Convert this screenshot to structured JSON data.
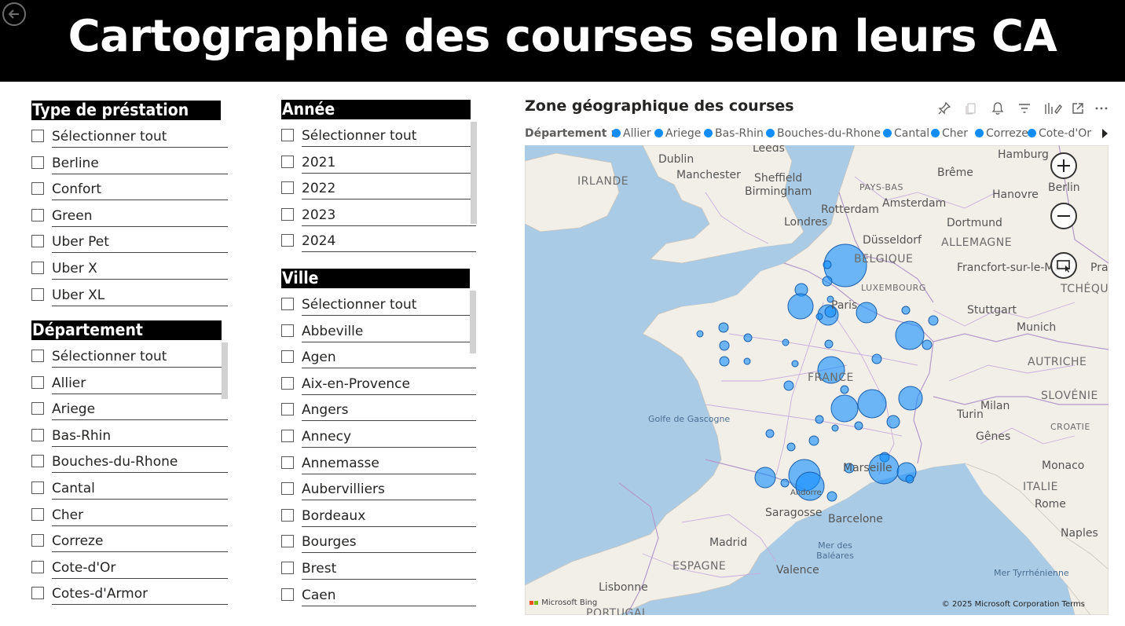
{
  "header": {
    "title": "Cartographie des courses selon leurs CA"
  },
  "slicers": {
    "prestation": {
      "title": "Type de préstation",
      "items": [
        "Sélectionner tout",
        "Berline",
        "Confort",
        "Green",
        "Uber Pet",
        "Uber X",
        "Uber XL"
      ]
    },
    "departement": {
      "title": "Département",
      "items": [
        "Sélectionner tout",
        "Allier",
        "Ariege",
        "Bas-Rhin",
        "Bouches-du-Rhone",
        "Cantal",
        "Cher",
        "Correze",
        "Cote-d'Or",
        "Cotes-d'Armor"
      ]
    },
    "annee": {
      "title": "Année",
      "items": [
        "Sélectionner tout",
        "2021",
        "2022",
        "2023",
        "2024"
      ]
    },
    "ville": {
      "title": "Ville",
      "items": [
        "Sélectionner tout",
        "Abbeville",
        "Agen",
        "Aix-en-Provence",
        "Angers",
        "Annecy",
        "Annemasse",
        "Aubervilliers",
        "Bordeaux",
        "Bourges",
        "Brest",
        "Caen"
      ]
    }
  },
  "map_visual": {
    "title": "Zone géographique des courses",
    "legend_title": "Département :",
    "legend_items": [
      "Allier",
      "Ariege",
      "Bas-Rhin",
      "Bouches-du-Rhone",
      "Cantal",
      "Cher",
      "Correze",
      "Cote-d'Or"
    ],
    "bubble_color": "#118dff",
    "toolbar_icons": [
      "pin-icon",
      "copy-icon",
      "bell-icon",
      "filter-icon",
      "format-icon",
      "focus-mode-icon",
      "more-options-icon"
    ],
    "bing": "Microsoft Bing",
    "copyright": "© 2025 Microsoft Corporation  Terms",
    "map_labels": {
      "cities": [
        "Dublin",
        "Manchester",
        "Leeds",
        "Sheffield",
        "Birmingham",
        "Londres",
        "Rotterdam",
        "Amsterdam",
        "Brême",
        "Hamburg",
        "Hanovre",
        "Berlin",
        "Dortmund",
        "Düsseldorf",
        "Francfort-sur-le-Main",
        "Stuttgart",
        "Munich",
        "Paris",
        "Turin",
        "Milan",
        "Gênes",
        "Monaco",
        "Marseille",
        "Saragosse",
        "Barcelone",
        "Madrid",
        "Valence",
        "Lisbonne",
        "Rome",
        "Naples",
        "Prague",
        "Andorre"
      ],
      "countries": [
        "IRLANDE",
        "PAYS-BAS",
        "BELGIQUE",
        "LUXEMBOURG",
        "ALLEMAGNE",
        "TCHÉQUIE",
        "AUTRICHE",
        "SLOVÉNIE",
        "CROATIE",
        "FRANCE",
        "ITALIE",
        "ESPAGNE",
        "PORTUGAL"
      ],
      "seas": [
        "Golfe de Gascogne",
        "Mer des Baléares",
        "Mer Tyrrhénienne"
      ]
    }
  }
}
